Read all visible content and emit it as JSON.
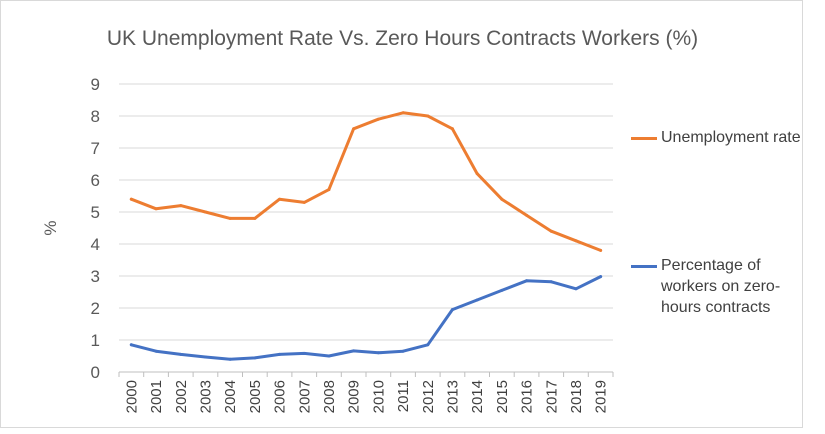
{
  "chart_data": {
    "type": "line",
    "title": "UK Unemployment Rate Vs.  Zero Hours Contracts Workers (%)",
    "xlabel": "",
    "ylabel": "%",
    "ylim": [
      0,
      9
    ],
    "yticks": [
      "0",
      "1",
      "2",
      "3",
      "4",
      "5",
      "6",
      "7",
      "8",
      "9"
    ],
    "grid": true,
    "legend_position": "right",
    "categories": [
      "2000",
      "2001",
      "2002",
      "2003",
      "2004",
      "2005",
      "2006",
      "2007",
      "2008",
      "2009",
      "2010",
      "2011",
      "2012",
      "2013",
      "2014",
      "2015",
      "2016",
      "2017",
      "2018",
      "2019"
    ],
    "series": [
      {
        "name": "Unemployment rate",
        "color": "#ed7d31",
        "values": [
          5.4,
          5.1,
          5.2,
          5.0,
          4.8,
          4.8,
          5.4,
          5.3,
          5.7,
          7.6,
          7.9,
          8.1,
          8.0,
          7.6,
          6.2,
          5.4,
          4.9,
          4.4,
          4.1,
          3.8
        ]
      },
      {
        "name": "Percentage of workers on zero-hours contracts",
        "color": "#4472c4",
        "values": [
          0.85,
          0.65,
          0.55,
          0.47,
          0.4,
          0.44,
          0.55,
          0.58,
          0.5,
          0.66,
          0.6,
          0.65,
          0.85,
          1.95,
          2.25,
          2.55,
          2.85,
          2.82,
          2.6,
          2.98
        ]
      }
    ]
  }
}
